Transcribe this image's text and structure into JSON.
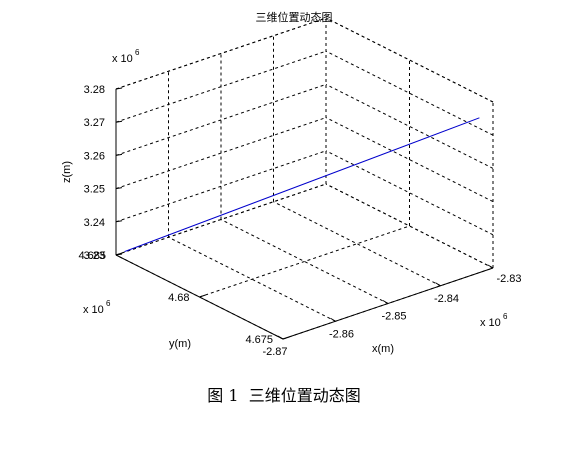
{
  "chart_data": {
    "type": "line3d",
    "title": "三维位置动态图",
    "xlabel": "x(m)",
    "ylabel": "y(m)",
    "zlabel": "z(m)",
    "x_multiplier": "x 10",
    "y_multiplier": "x 10",
    "z_multiplier": "x 10",
    "multiplier_exponent": "6",
    "xticks": [
      "-2.87",
      "-2.86",
      "-2.85",
      "-2.84",
      "-2.83"
    ],
    "yticks": [
      "4.675",
      "4.68",
      "4.685"
    ],
    "zticks": [
      "3.23",
      "3.24",
      "3.25",
      "3.26",
      "3.27",
      "3.28"
    ],
    "xlim": [
      -2.87,
      -2.83
    ],
    "ylim": [
      4.675,
      4.685
    ],
    "zlim": [
      3.23,
      3.28
    ],
    "grid": true,
    "series": [
      {
        "color": "#0000cc",
        "points": [
          {
            "x": -2.869,
            "y": 4.6848,
            "z": 3.231
          },
          {
            "x": -2.831,
            "y": 4.6755,
            "z": 3.2745
          }
        ]
      }
    ]
  },
  "caption": "图 1  三维位置动态图"
}
